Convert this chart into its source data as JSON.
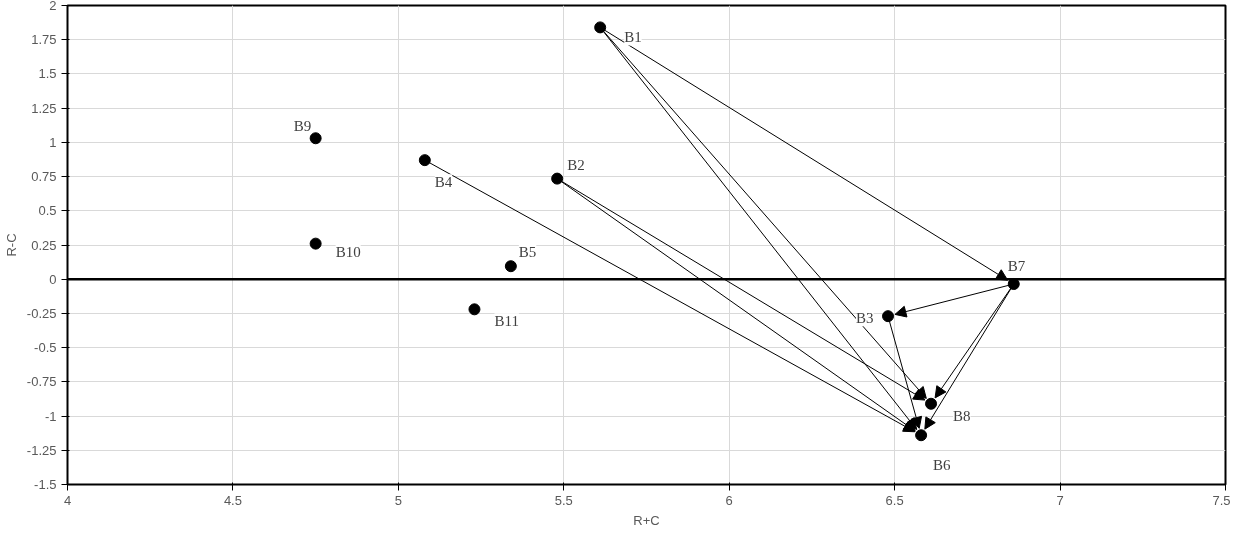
{
  "chart_data": {
    "type": "scatter",
    "xlabel": "R+C",
    "ylabel": "R-C",
    "xlim": [
      4,
      7.5
    ],
    "xticks": [
      4,
      4.5,
      5,
      5.5,
      6,
      6.5,
      7,
      7.5
    ],
    "ylim": [
      -1.5,
      2
    ],
    "yticks": [
      -1.5,
      -1.25,
      -1,
      -0.75,
      -0.5,
      -0.25,
      0,
      0.25,
      0.5,
      0.75,
      1,
      1.25,
      1.5,
      1.75,
      2
    ],
    "grid": true,
    "marker": "circle",
    "ref_lines": [
      {
        "axis": "y",
        "value": 0,
        "color": "#000000"
      }
    ],
    "series": [
      {
        "color": "#000000",
        "x": [
          5.61,
          5.48,
          6.48,
          5.08,
          5.34,
          6.58,
          6.86,
          6.61,
          4.75,
          4.75,
          5.23
        ],
        "values": [
          1.84,
          0.735,
          -0.27,
          0.87,
          0.095,
          -1.14,
          -0.035,
          -0.91,
          1.03,
          0.26,
          -0.22
        ]
      }
    ],
    "annotations": [
      {
        "text": "B1",
        "x": 5.61,
        "y": 1.84
      },
      {
        "text": "B2",
        "x": 5.48,
        "y": 0.735
      },
      {
        "text": "B3",
        "x": 6.48,
        "y": -0.27
      },
      {
        "text": "B4",
        "x": 5.08,
        "y": 0.87
      },
      {
        "text": "B5",
        "x": 5.34,
        "y": 0.095
      },
      {
        "text": "B6",
        "x": 6.58,
        "y": -1.14
      },
      {
        "text": "B7",
        "x": 6.86,
        "y": -0.035
      },
      {
        "text": "B8",
        "x": 6.61,
        "y": -0.91
      },
      {
        "text": "B9",
        "x": 4.75,
        "y": 1.03
      },
      {
        "text": "B10",
        "x": 4.75,
        "y": 0.26
      },
      {
        "text": "B11",
        "x": 5.23,
        "y": -0.22
      }
    ]
  }
}
